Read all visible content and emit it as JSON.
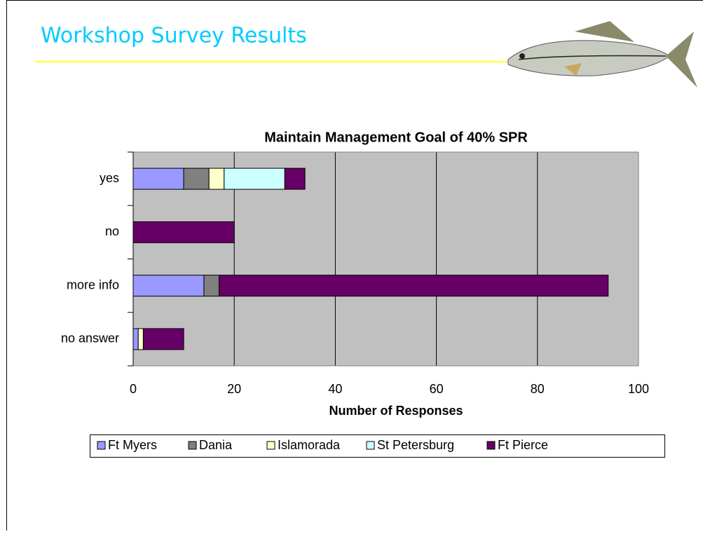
{
  "slide_title": "Workshop Survey Results",
  "chart_data": {
    "type": "stacked-barh",
    "title": "Maintain Management Goal of 40% SPR",
    "x_label": "Number of Responses",
    "categories": [
      "yes",
      "no",
      "more info",
      "no answer"
    ],
    "series": [
      {
        "name": "Ft Myers",
        "color": "#9999ff",
        "values": [
          10,
          0,
          14,
          1
        ]
      },
      {
        "name": "Dania",
        "color": "#808080",
        "values": [
          5,
          0,
          3,
          0
        ]
      },
      {
        "name": "Islamorada",
        "color": "#ffffcc",
        "values": [
          3,
          0,
          0,
          1
        ]
      },
      {
        "name": "St Petersburg",
        "color": "#ccffff",
        "values": [
          12,
          0,
          0,
          0
        ]
      },
      {
        "name": "Ft Pierce",
        "color": "#660066",
        "values": [
          4,
          20,
          77,
          8
        ]
      }
    ],
    "xlim": [
      0,
      100
    ],
    "xticks": [
      0,
      20,
      40,
      60,
      80,
      100
    ],
    "grid": true,
    "legend": "bottom"
  }
}
